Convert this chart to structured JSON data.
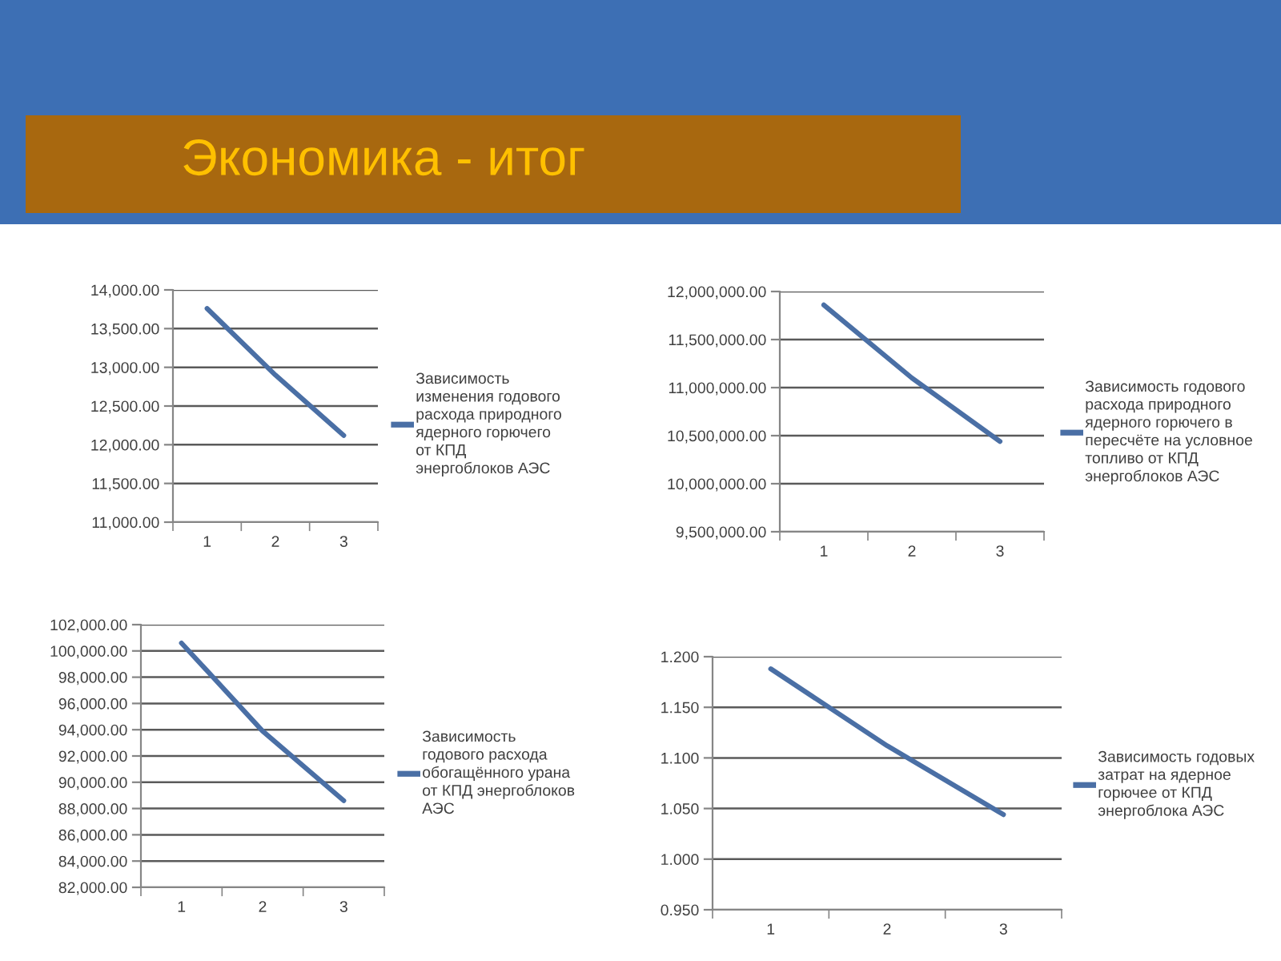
{
  "chart_data": [
    {
      "type": "line",
      "title": "Экономика - итог",
      "categories": [
        "1",
        "2",
        "3"
      ],
      "series": [
        {
          "name": "Зависимость изменения годового расхода природного ядерного горючего от КПД энергоблоков АЭС",
          "color": "#4a6fa5",
          "values": [
            13760,
            12900,
            12120
          ]
        }
      ],
      "ylim": [
        11000,
        14000
      ],
      "yticks": [
        {
          "value": 11000,
          "label": "11,000.00"
        },
        {
          "value": 11500,
          "label": "11,500.00"
        },
        {
          "value": 12000,
          "label": "12,000.00"
        },
        {
          "value": 12500,
          "label": "12,500.00"
        },
        {
          "value": 13000,
          "label": "13,000.00"
        },
        {
          "value": 13500,
          "label": "13,500.00"
        },
        {
          "value": 14000,
          "label": "14,000.00"
        }
      ],
      "grid": "y",
      "legend": "right"
    },
    {
      "type": "line",
      "categories": [
        "1",
        "2",
        "3"
      ],
      "series": [
        {
          "name": "Зависимость годового расхода природного ядерного горючего в пересчёте на условное топливо от КПД энергоблоков АЭС",
          "color": "#4a6fa5",
          "values": [
            11860000,
            11100000,
            10440000
          ]
        }
      ],
      "ylim": [
        9500000,
        12000000
      ],
      "yticks": [
        {
          "value": 9500000,
          "label": "9,500,000.00"
        },
        {
          "value": 10000000,
          "label": "10,000,000.00"
        },
        {
          "value": 10500000,
          "label": "10,500,000.00"
        },
        {
          "value": 11000000,
          "label": "11,000,000.00"
        },
        {
          "value": 11500000,
          "label": "11,500,000.00"
        },
        {
          "value": 12000000,
          "label": "12,000,000.00"
        }
      ],
      "grid": "y",
      "legend": "right"
    },
    {
      "type": "line",
      "categories": [
        "1",
        "2",
        "3"
      ],
      "series": [
        {
          "name": "Зависимость годового расхода обогащённого урана от КПД энергоблоков АЭС",
          "color": "#4a6fa5",
          "values": [
            100600,
            93900,
            88600
          ]
        }
      ],
      "ylim": [
        82000,
        102000
      ],
      "yticks": [
        {
          "value": 82000,
          "label": "82,000.00"
        },
        {
          "value": 84000,
          "label": "84,000.00"
        },
        {
          "value": 86000,
          "label": "86,000.00"
        },
        {
          "value": 88000,
          "label": "88,000.00"
        },
        {
          "value": 90000,
          "label": "90,000.00"
        },
        {
          "value": 92000,
          "label": "92,000.00"
        },
        {
          "value": 94000,
          "label": "94,000.00"
        },
        {
          "value": 96000,
          "label": "96,000.00"
        },
        {
          "value": 98000,
          "label": "98,000.00"
        },
        {
          "value": 100000,
          "label": "100,000.00"
        },
        {
          "value": 102000,
          "label": "102,000.00"
        }
      ],
      "grid": "y",
      "legend": "right"
    },
    {
      "type": "line",
      "categories": [
        "1",
        "2",
        "3"
      ],
      "series": [
        {
          "name": "Зависимость годовых затрат на ядерное горючее от КПД энергоблока АЭС",
          "color": "#4a6fa5",
          "values": [
            1.188,
            1.112,
            1.044
          ]
        }
      ],
      "ylim": [
        0.95,
        1.2
      ],
      "yticks": [
        {
          "value": 0.95,
          "label": "0.950"
        },
        {
          "value": 1.0,
          "label": "1.000"
        },
        {
          "value": 1.05,
          "label": "1.050"
        },
        {
          "value": 1.1,
          "label": "1.100"
        },
        {
          "value": 1.15,
          "label": "1.150"
        },
        {
          "value": 1.2,
          "label": "1.200"
        }
      ],
      "grid": "y",
      "legend": "right"
    }
  ]
}
